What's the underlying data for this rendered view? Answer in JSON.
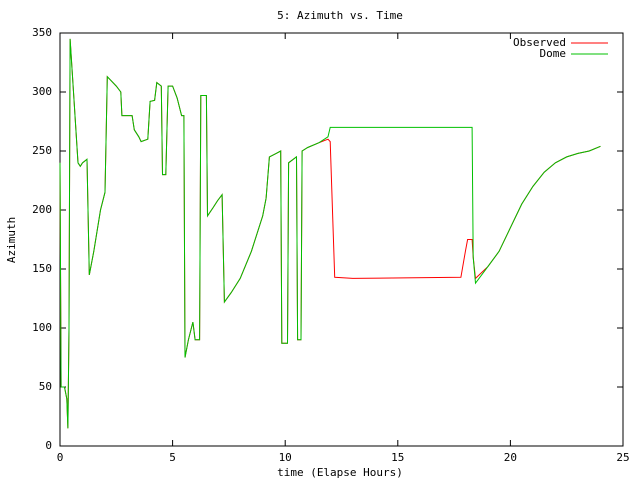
{
  "chart_data": {
    "type": "line",
    "title": "5: Azimuth vs. Time",
    "xlabel": "time (Elapse Hours)",
    "ylabel": "Azimuth",
    "xlim": [
      0,
      25
    ],
    "xticks": [
      0,
      5,
      10,
      15,
      20,
      25
    ],
    "ylim": [
      0,
      350
    ],
    "yticks": [
      0,
      50,
      100,
      150,
      200,
      250,
      300,
      350
    ],
    "legend": "upper right",
    "x": [
      0,
      0.05,
      0.2,
      0.3,
      0.35,
      0.4,
      0.45,
      0.6,
      0.8,
      0.9,
      1.0,
      1.2,
      1.3,
      1.5,
      1.8,
      2.0,
      2.1,
      2.5,
      2.7,
      2.75,
      3.2,
      3.3,
      3.5,
      3.6,
      3.9,
      4.0,
      4.2,
      4.3,
      4.5,
      4.55,
      4.7,
      4.8,
      5.0,
      5.2,
      5.4,
      5.5,
      5.55,
      5.7,
      5.9,
      6.0,
      6.2,
      6.25,
      6.5,
      6.55,
      6.8,
      7.0,
      7.2,
      7.3,
      7.6,
      8.0,
      8.5,
      9.0,
      9.15,
      9.3,
      9.6,
      9.8,
      9.85,
      10.1,
      10.15,
      10.5,
      10.55,
      10.7,
      10.75,
      11.0,
      11.5,
      11.9,
      12.0,
      12.2,
      13.0,
      17.8,
      18.0,
      18.1,
      18.3,
      18.35,
      18.45,
      19.0,
      19.5,
      20.0,
      20.5,
      21.0,
      21.5,
      22.0,
      22.5,
      23.0,
      23.5,
      24.0
    ],
    "series": [
      {
        "name": "Observed",
        "color": "#ff0000",
        "values": [
          240,
          50,
          50,
          40,
          15,
          100,
          345,
          300,
          240,
          237,
          240,
          243,
          145,
          165,
          200,
          215,
          313,
          305,
          300,
          280,
          280,
          268,
          262,
          258,
          260,
          292,
          293,
          308,
          305,
          230,
          230,
          305,
          305,
          295,
          280,
          280,
          75,
          90,
          105,
          90,
          90,
          297,
          297,
          195,
          202,
          208,
          213,
          122,
          130,
          142,
          165,
          195,
          210,
          245,
          248,
          250,
          87,
          87,
          240,
          245,
          90,
          90,
          250,
          253,
          257,
          260,
          258,
          143,
          142,
          143,
          165,
          175,
          175,
          160,
          142,
          152,
          165,
          185,
          205,
          220,
          232,
          240,
          245,
          248,
          250,
          254
        ]
      },
      {
        "name": "Dome",
        "color": "#00c000",
        "values": [
          240,
          50,
          50,
          40,
          15,
          100,
          345,
          300,
          240,
          237,
          240,
          243,
          145,
          165,
          200,
          215,
          313,
          305,
          300,
          280,
          280,
          268,
          262,
          258,
          260,
          292,
          293,
          308,
          305,
          230,
          230,
          305,
          305,
          295,
          280,
          280,
          75,
          90,
          105,
          90,
          90,
          297,
          297,
          195,
          202,
          208,
          213,
          122,
          130,
          142,
          165,
          195,
          210,
          245,
          248,
          250,
          87,
          87,
          240,
          245,
          90,
          90,
          250,
          253,
          257,
          262,
          270,
          270,
          270,
          270,
          270,
          270,
          270,
          160,
          138,
          152,
          165,
          185,
          205,
          220,
          232,
          240,
          245,
          248,
          250,
          254
        ]
      }
    ]
  }
}
